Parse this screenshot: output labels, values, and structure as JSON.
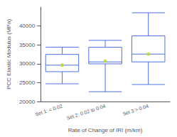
{
  "chart_data": {
    "type": "box",
    "xlabel": "Rate of Change of IRI (m/km)",
    "ylabel": "PCC Elastic Modulus (MPa)",
    "categories": [
      "Set 1: < 0.02",
      "Set 2: 0.02 to 0.04",
      "Set 3 > 0.04"
    ],
    "boxes": [
      {
        "q1": 27904,
        "median": 29627,
        "q3": 32469,
        "whislo": 24700,
        "whishi": 34400,
        "mean": 29627
      },
      {
        "q1": 29971,
        "median": 30488,
        "q3": 34363,
        "whislo": 22600,
        "whishi": 36200,
        "mean": 30700
      },
      {
        "q1": 30488,
        "median": 32555,
        "q3": 37378,
        "whislo": 24500,
        "whishi": 43500,
        "mean": 32555
      }
    ],
    "ylim": [
      20000,
      45000
    ],
    "yticks": [
      20000,
      25000,
      30000,
      35000,
      40000
    ],
    "grid": false
  }
}
